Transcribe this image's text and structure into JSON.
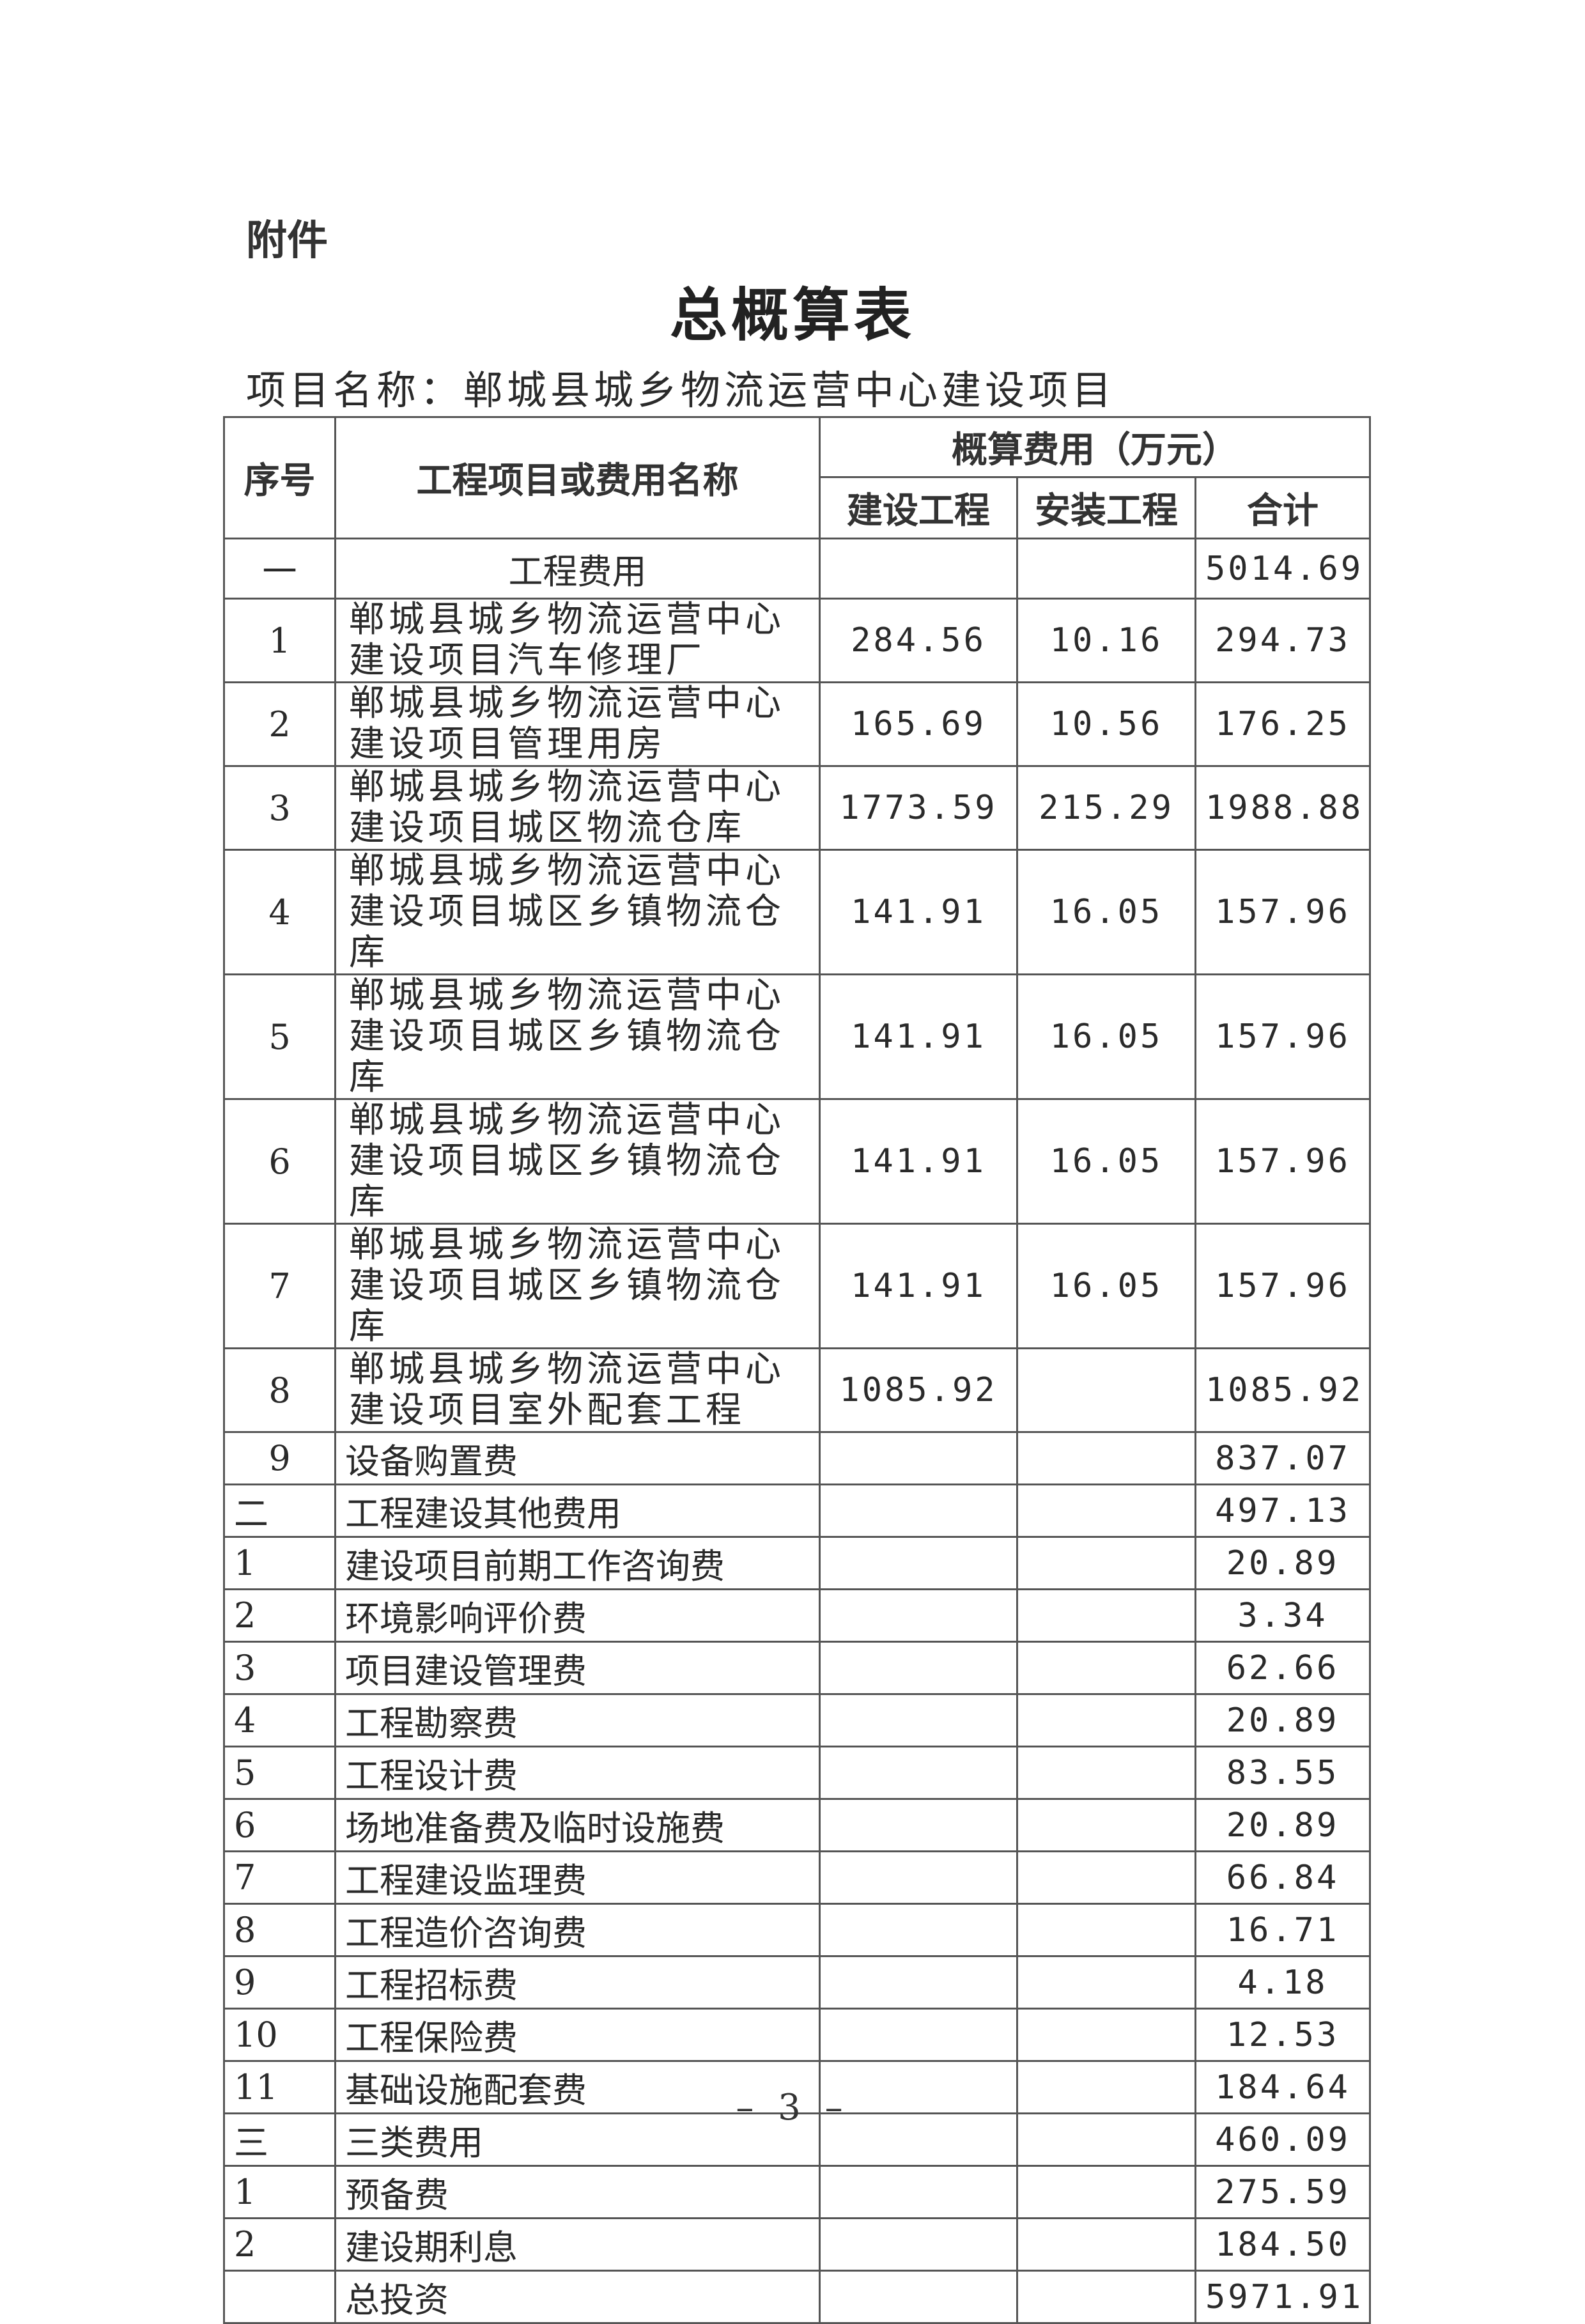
{
  "attachment_label": "附件",
  "title": "总概算表",
  "project_line": "项目名称：郸城县城乡物流运营中心建设项目",
  "table": {
    "headers": {
      "seq": "序号",
      "name": "工程项目或费用名称",
      "cost_group": "概算费用（万元）",
      "construction": "建设工程",
      "installation": "安装工程",
      "total": "合计"
    },
    "rows": [
      {
        "seq": "一",
        "name": "工程费用",
        "construction": "",
        "installation": "",
        "total": "5014.69"
      },
      {
        "seq": "1",
        "name": "郸城县城乡物流运营中心建设项目汽车修理厂",
        "construction": "284.56",
        "installation": "10.16",
        "total": "294.73"
      },
      {
        "seq": "2",
        "name": "郸城县城乡物流运营中心建设项目管理用房",
        "construction": "165.69",
        "installation": "10.56",
        "total": "176.25"
      },
      {
        "seq": "3",
        "name": "郸城县城乡物流运营中心建设项目城区物流仓库",
        "construction": "1773.59",
        "installation": "215.29",
        "total": "1988.88"
      },
      {
        "seq": "4",
        "name": "郸城县城乡物流运营中心建设项目城区乡镇物流仓库",
        "construction": "141.91",
        "installation": "16.05",
        "total": "157.96"
      },
      {
        "seq": "5",
        "name": "郸城县城乡物流运营中心建设项目城区乡镇物流仓库",
        "construction": "141.91",
        "installation": "16.05",
        "total": "157.96"
      },
      {
        "seq": "6",
        "name": "郸城县城乡物流运营中心建设项目城区乡镇物流仓库",
        "construction": "141.91",
        "installation": "16.05",
        "total": "157.96"
      },
      {
        "seq": "7",
        "name": "郸城县城乡物流运营中心建设项目城区乡镇物流仓库",
        "construction": "141.91",
        "installation": "16.05",
        "total": "157.96"
      },
      {
        "seq": "8",
        "name": "郸城县城乡物流运营中心建设项目室外配套工程",
        "construction": "1085.92",
        "installation": "",
        "total": "1085.92"
      },
      {
        "seq": "9",
        "name": "设备购置费",
        "construction": "",
        "installation": "",
        "total": "837.07"
      },
      {
        "seq": "二",
        "name": "工程建设其他费用",
        "construction": "",
        "installation": "",
        "total": "497.13"
      },
      {
        "seq": "1",
        "name": "建设项目前期工作咨询费",
        "construction": "",
        "installation": "",
        "total": "20.89"
      },
      {
        "seq": "2",
        "name": "环境影响评价费",
        "construction": "",
        "installation": "",
        "total": "3.34"
      },
      {
        "seq": "3",
        "name": "项目建设管理费",
        "construction": "",
        "installation": "",
        "total": "62.66"
      },
      {
        "seq": "4",
        "name": "工程勘察费",
        "construction": "",
        "installation": "",
        "total": "20.89"
      },
      {
        "seq": "5",
        "name": "工程设计费",
        "construction": "",
        "installation": "",
        "total": "83.55"
      },
      {
        "seq": "6",
        "name": "场地准备费及临时设施费",
        "construction": "",
        "installation": "",
        "total": "20.89"
      },
      {
        "seq": "7",
        "name": "工程建设监理费",
        "construction": "",
        "installation": "",
        "total": "66.84"
      },
      {
        "seq": "8",
        "name": "工程造价咨询费",
        "construction": "",
        "installation": "",
        "total": "16.71"
      },
      {
        "seq": "9",
        "name": "工程招标费",
        "construction": "",
        "installation": "",
        "total": "4.18"
      },
      {
        "seq": "10",
        "name": "工程保险费",
        "construction": "",
        "installation": "",
        "total": "12.53"
      },
      {
        "seq": "11",
        "name": "基础设施配套费",
        "construction": "",
        "installation": "",
        "total": "184.64"
      },
      {
        "seq": "三",
        "name": "三类费用",
        "construction": "",
        "installation": "",
        "total": "460.09"
      },
      {
        "seq": "1",
        "name": "预备费",
        "construction": "",
        "installation": "",
        "total": "275.59"
      },
      {
        "seq": "2",
        "name": "建设期利息",
        "construction": "",
        "installation": "",
        "total": "184.50"
      },
      {
        "seq": "",
        "name": "总投资",
        "construction": "",
        "installation": "",
        "total": "5971.91"
      }
    ]
  },
  "page_number": "– 3 –"
}
